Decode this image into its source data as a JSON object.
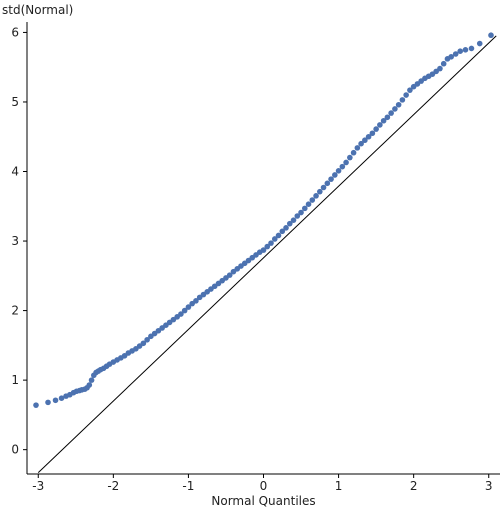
{
  "chart_data": {
    "type": "scatter",
    "title": "",
    "xlabel": "Normal Quantiles",
    "ylabel": "std(Normal)",
    "xlim": [
      -3.15,
      3.15
    ],
    "ylim": [
      -0.35,
      6.15
    ],
    "xticks": [
      -3,
      -2,
      -1,
      0,
      1,
      2,
      3
    ],
    "yticks": [
      0,
      1,
      2,
      3,
      4,
      5,
      6
    ],
    "grid": false,
    "legend": "none",
    "reference_line": {
      "x": [
        -3.0,
        3.1
      ],
      "y": [
        -0.33,
        5.95
      ]
    },
    "series": [
      {
        "color": "#4c72b0",
        "x": [
          -3.03,
          -2.87,
          -2.77,
          -2.69,
          -2.63,
          -2.58,
          -2.53,
          -2.49,
          -2.45,
          -2.42,
          -2.38,
          -2.35,
          -2.32,
          -2.29,
          -2.26,
          -2.23,
          -2.2,
          -2.17,
          -2.13,
          -2.09,
          -2.05,
          -2.0,
          -1.95,
          -1.9,
          -1.85,
          -1.8,
          -1.75,
          -1.7,
          -1.65,
          -1.6,
          -1.55,
          -1.5,
          -1.45,
          -1.4,
          -1.35,
          -1.3,
          -1.25,
          -1.2,
          -1.15,
          -1.1,
          -1.05,
          -1.0,
          -0.95,
          -0.9,
          -0.85,
          -0.8,
          -0.75,
          -0.7,
          -0.65,
          -0.6,
          -0.55,
          -0.5,
          -0.45,
          -0.4,
          -0.35,
          -0.3,
          -0.25,
          -0.2,
          -0.15,
          -0.1,
          -0.05,
          0.0,
          0.05,
          0.1,
          0.15,
          0.2,
          0.25,
          0.3,
          0.35,
          0.4,
          0.45,
          0.5,
          0.55,
          0.6,
          0.65,
          0.7,
          0.75,
          0.8,
          0.85,
          0.9,
          0.95,
          1.0,
          1.05,
          1.1,
          1.15,
          1.2,
          1.25,
          1.3,
          1.35,
          1.4,
          1.45,
          1.5,
          1.55,
          1.6,
          1.65,
          1.7,
          1.75,
          1.8,
          1.85,
          1.9,
          1.95,
          2.0,
          2.05,
          2.1,
          2.15,
          2.2,
          2.25,
          2.3,
          2.35,
          2.4,
          2.45,
          2.5,
          2.56,
          2.62,
          2.69,
          2.77,
          2.88,
          3.03
        ],
        "y": [
          0.64,
          0.68,
          0.71,
          0.74,
          0.77,
          0.79,
          0.82,
          0.84,
          0.85,
          0.86,
          0.87,
          0.89,
          0.93,
          1.0,
          1.07,
          1.11,
          1.13,
          1.15,
          1.17,
          1.2,
          1.23,
          1.26,
          1.29,
          1.32,
          1.35,
          1.39,
          1.42,
          1.45,
          1.49,
          1.53,
          1.58,
          1.63,
          1.67,
          1.71,
          1.75,
          1.79,
          1.83,
          1.87,
          1.91,
          1.95,
          2.0,
          2.05,
          2.1,
          2.14,
          2.19,
          2.23,
          2.27,
          2.31,
          2.35,
          2.39,
          2.43,
          2.47,
          2.51,
          2.56,
          2.6,
          2.64,
          2.68,
          2.72,
          2.76,
          2.8,
          2.84,
          2.87,
          2.92,
          2.97,
          3.03,
          3.08,
          3.14,
          3.19,
          3.25,
          3.3,
          3.36,
          3.41,
          3.47,
          3.53,
          3.59,
          3.65,
          3.71,
          3.77,
          3.83,
          3.89,
          3.95,
          4.01,
          4.07,
          4.13,
          4.2,
          4.27,
          4.34,
          4.4,
          4.45,
          4.5,
          4.55,
          4.61,
          4.67,
          4.73,
          4.78,
          4.84,
          4.9,
          4.96,
          5.03,
          5.1,
          5.17,
          5.22,
          5.26,
          5.3,
          5.34,
          5.37,
          5.4,
          5.44,
          5.48,
          5.55,
          5.62,
          5.65,
          5.69,
          5.73,
          5.75,
          5.77,
          5.84,
          5.96
        ]
      }
    ]
  }
}
